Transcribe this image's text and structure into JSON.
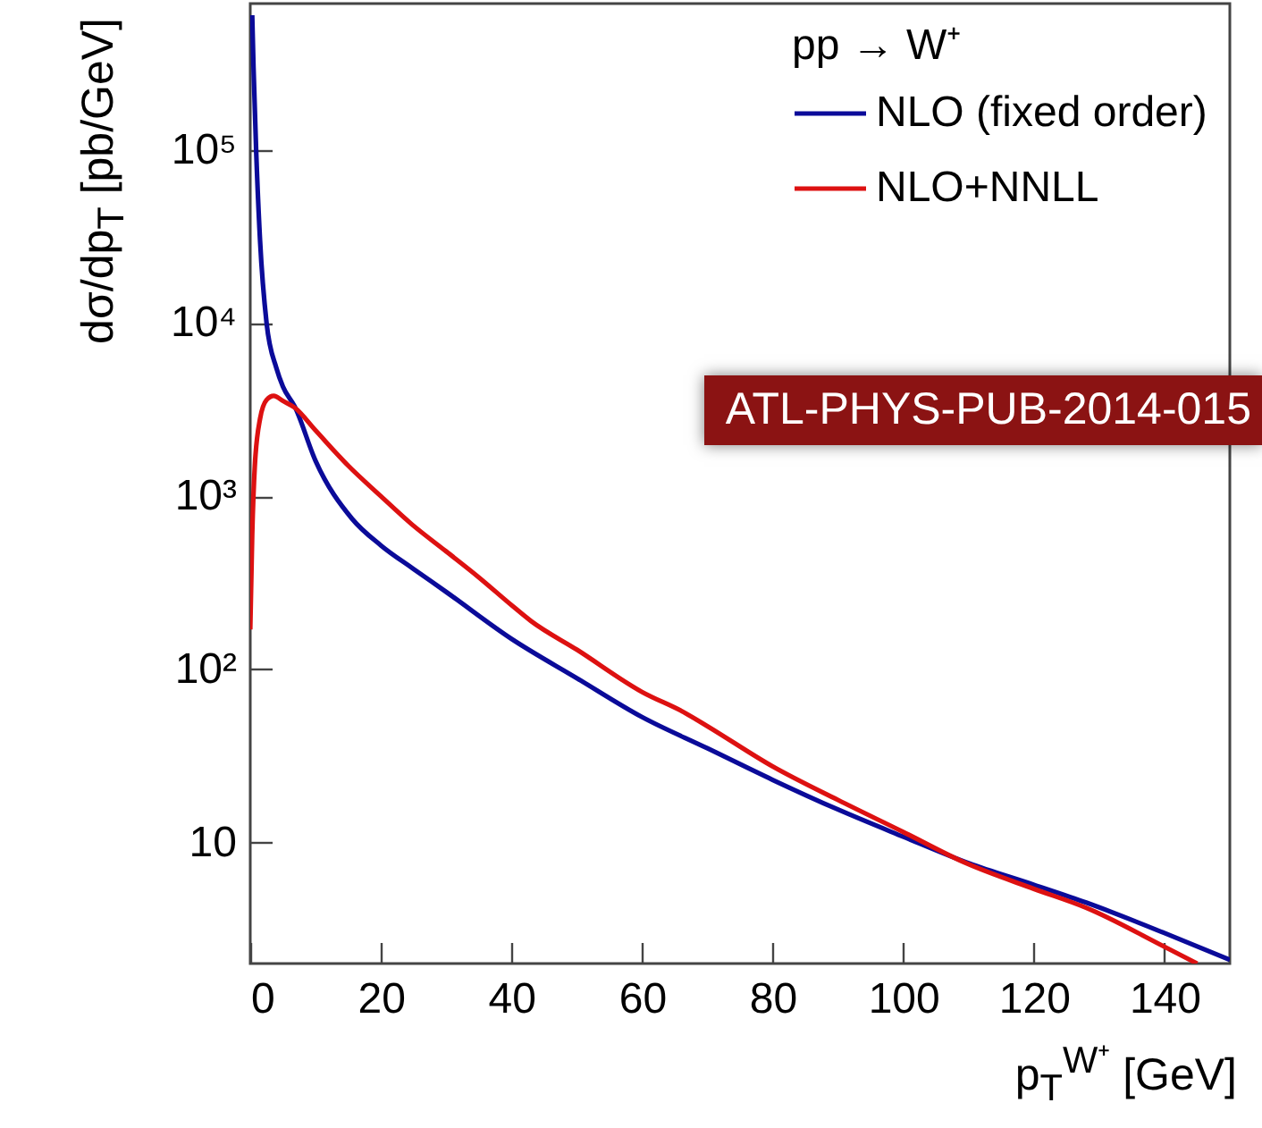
{
  "chart_data": {
    "type": "line",
    "legend_title": "pp → W⁺",
    "xlabel": "p$_{T}$$^{W⁺}$ [GeV]",
    "ylabel": "dσ/dp$_{T}$ [pb/GeV]",
    "annotations": [
      "ATL-PHYS-PUB-2014-015"
    ],
    "log": "y",
    "legend": "top right",
    "xlim": [
      0,
      150
    ],
    "xticks": [
      0,
      20,
      40,
      60,
      80,
      100,
      120,
      140
    ],
    "ylim": [
      2,
      700000
    ],
    "yticks": [
      {
        "value": 10,
        "label": "10"
      },
      {
        "value": 100,
        "label": "10²"
      },
      {
        "value": 1000,
        "label": "10³"
      },
      {
        "value": 10000,
        "label": "10⁴"
      },
      {
        "value": 100000,
        "label": "10⁵"
      }
    ],
    "series": [
      {
        "name": "NLO (fixed order)",
        "color": "#0b0b99",
        "x": [
          0.3,
          0.5,
          0.9,
          1.5,
          2.5,
          4,
          5,
          6.8,
          10,
          15.6,
          20,
          25,
          30,
          40,
          50,
          60,
          70,
          80,
          90,
          100,
          110,
          120,
          128,
          140,
          150
        ],
        "values": [
          600000,
          300000,
          100000,
          30000,
          10000,
          5500,
          4300,
          3300,
          1600,
          740,
          520,
          380,
          280,
          150,
          89,
          53,
          35,
          23,
          15.5,
          10.8,
          7.6,
          5.7,
          4.5,
          3.0,
          2.1
        ]
      },
      {
        "name": "NLO+NNLL",
        "color": "#dd1111",
        "x": [
          0,
          0.3,
          0.7,
          1.5,
          2.5,
          3.6,
          5,
          6.8,
          10,
          15,
          20,
          24.7,
          30,
          35,
          40,
          43,
          50,
          60,
          66.6,
          70,
          80,
          90,
          100,
          109.6,
          120,
          128,
          140,
          145
        ],
        "values": [
          170,
          600,
          1500,
          2800,
          3600,
          3800,
          3550,
          3250,
          2400,
          1500,
          1000,
          690,
          480,
          340,
          235,
          190,
          130,
          74,
          56,
          47,
          27.5,
          17.6,
          11.5,
          7.6,
          5.4,
          4.2,
          2.5,
          2.0
        ]
      }
    ]
  }
}
